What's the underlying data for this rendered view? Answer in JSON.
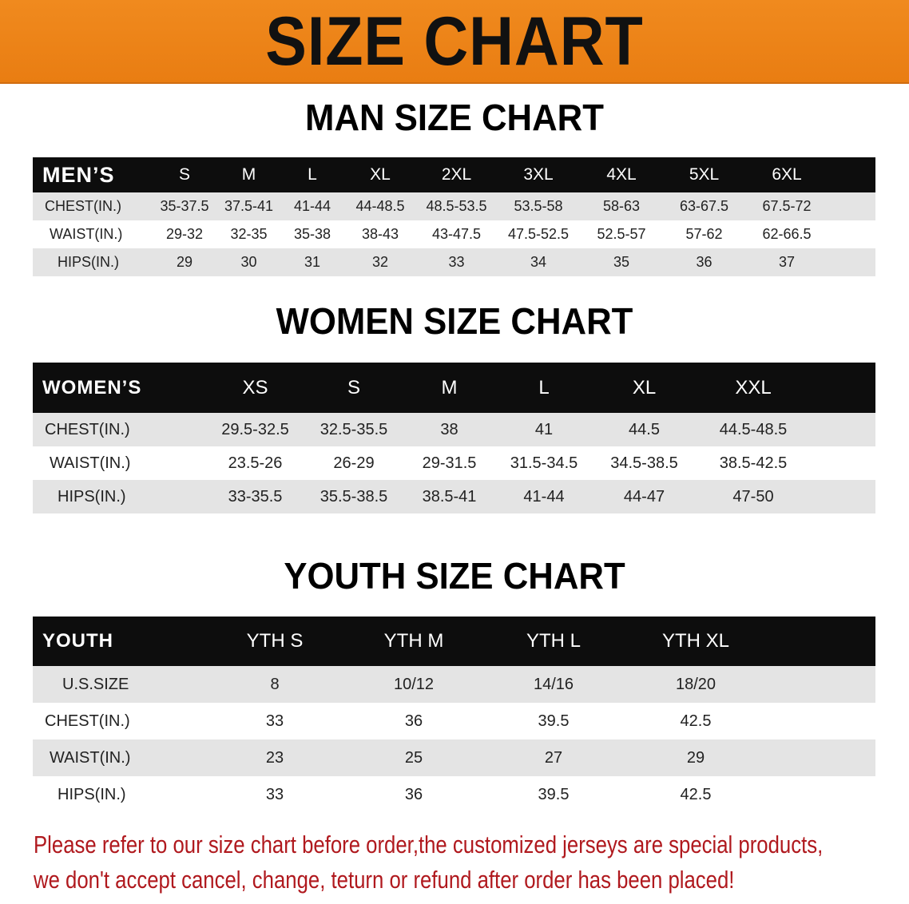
{
  "banner_title": "SIZE CHART",
  "men": {
    "title": "MAN SIZE CHART",
    "header": "MEN’S",
    "sizes": [
      "S",
      "M",
      "L",
      "XL",
      "2XL",
      "3XL",
      "4XL",
      "5XL",
      "6XL"
    ],
    "rows": [
      {
        "label": "CHEST(IN.)",
        "values": [
          "35-37.5",
          "37.5-41",
          "41-44",
          "44-48.5",
          "48.5-53.5",
          "53.5-58",
          "58-63",
          "63-67.5",
          "67.5-72"
        ]
      },
      {
        "label": "WAIST(IN.)",
        "values": [
          "29-32",
          "32-35",
          "35-38",
          "38-43",
          "43-47.5",
          "47.5-52.5",
          "52.5-57",
          "57-62",
          "62-66.5"
        ]
      },
      {
        "label": "HIPS(IN.)",
        "values": [
          "29",
          "30",
          "31",
          "32",
          "33",
          "34",
          "35",
          "36",
          "37"
        ]
      }
    ]
  },
  "women": {
    "title": "WOMEN SIZE CHART",
    "header": "WOMEN’S",
    "sizes": [
      "XS",
      "S",
      "M",
      "L",
      "XL",
      "XXL"
    ],
    "rows": [
      {
        "label": "CHEST(IN.)",
        "values": [
          "29.5-32.5",
          "32.5-35.5",
          "38",
          "41",
          "44.5",
          "44.5-48.5"
        ]
      },
      {
        "label": "WAIST(IN.)",
        "values": [
          "23.5-26",
          "26-29",
          "29-31.5",
          "31.5-34.5",
          "34.5-38.5",
          "38.5-42.5"
        ]
      },
      {
        "label": "HIPS(IN.)",
        "values": [
          "33-35.5",
          "35.5-38.5",
          "38.5-41",
          "41-44",
          "44-47",
          "47-50"
        ]
      }
    ]
  },
  "youth": {
    "title": "YOUTH SIZE CHART",
    "header": "YOUTH",
    "sizes": [
      "YTH S",
      "YTH M",
      "YTH L",
      "YTH XL"
    ],
    "rows": [
      {
        "label": "U.S.SIZE",
        "values": [
          "8",
          "10/12",
          "14/16",
          "18/20"
        ]
      },
      {
        "label": "CHEST(IN.)",
        "values": [
          "33",
          "36",
          "39.5",
          "42.5"
        ]
      },
      {
        "label": "WAIST(IN.)",
        "values": [
          "23",
          "25",
          "27",
          "29"
        ]
      },
      {
        "label": "HIPS(IN.)",
        "values": [
          "33",
          "36",
          "39.5",
          "42.5"
        ]
      }
    ]
  },
  "notice": {
    "line1": "Please refer to our size chart before order,the customized jerseys are special products,",
    "line2": "we don't accept cancel, change, teturn or refund after order has been placed!"
  },
  "colors": {
    "banner": "#ee8419",
    "header_row": "#0d0d0d",
    "stripe": "#e4e4e4",
    "notice": "#b0191e"
  }
}
